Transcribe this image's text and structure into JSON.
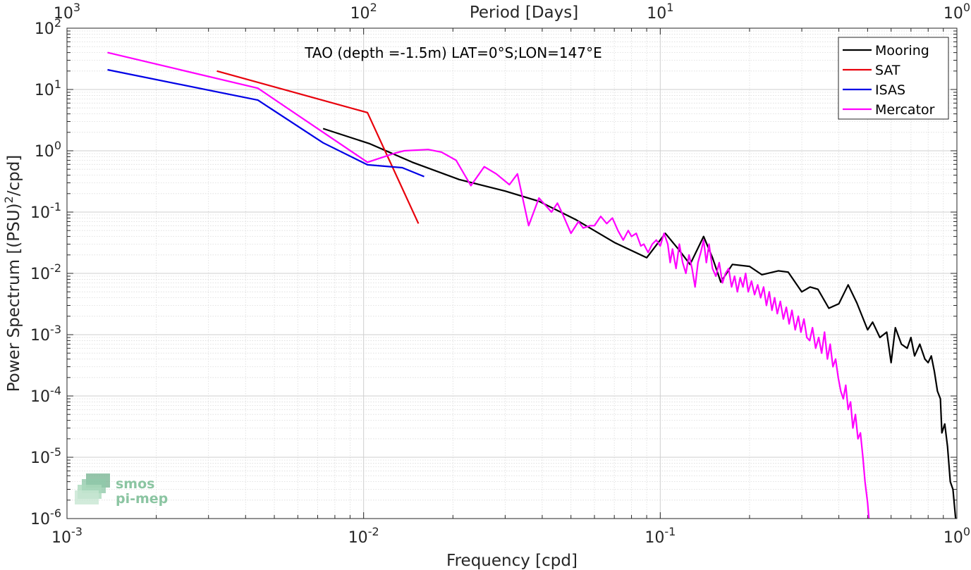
{
  "chart_data": {
    "type": "line",
    "title": "TAO (depth =-1.5m) LAT=0°S;LON=147°E",
    "xlabel": "Frequency [cpd]",
    "ylabel": "Power Spectrum [(PSU)",
    "ylabel_sup": "2",
    "ylabel_tail": "/cpd]",
    "top_xlabel": "Period [Days]",
    "x_scale": "log",
    "y_scale": "log",
    "xlim": [
      0.001,
      1
    ],
    "ylim": [
      1e-06,
      100
    ],
    "grid": true,
    "legend_position": "top-right",
    "x_ticks": [
      {
        "value": 0.001,
        "base": "10",
        "exp": "-3"
      },
      {
        "value": 0.01,
        "base": "10",
        "exp": "-2"
      },
      {
        "value": 0.1,
        "base": "10",
        "exp": "-1"
      },
      {
        "value": 1,
        "base": "10",
        "exp": "0"
      }
    ],
    "top_ticks": [
      {
        "value": 0.001,
        "base": "10",
        "exp": "3"
      },
      {
        "value": 0.01,
        "base": "10",
        "exp": "2"
      },
      {
        "value": 0.1,
        "base": "10",
        "exp": "1"
      },
      {
        "value": 1,
        "base": "10",
        "exp": "0"
      }
    ],
    "y_ticks": [
      {
        "value": 100,
        "base": "10",
        "exp": "2"
      },
      {
        "value": 10,
        "base": "10",
        "exp": "1"
      },
      {
        "value": 1,
        "base": "10",
        "exp": "0"
      },
      {
        "value": 0.1,
        "base": "10",
        "exp": "-1"
      },
      {
        "value": 0.01,
        "base": "10",
        "exp": "-2"
      },
      {
        "value": 0.001,
        "base": "10",
        "exp": "-3"
      },
      {
        "value": 0.0001,
        "base": "10",
        "exp": "-4"
      },
      {
        "value": 1e-05,
        "base": "10",
        "exp": "-5"
      },
      {
        "value": 1e-06,
        "base": "10",
        "exp": "-6"
      }
    ],
    "series": [
      {
        "name": "Mooring",
        "color": "#000000",
        "points": [
          [
            0.0073,
            2.3
          ],
          [
            0.0105,
            1.3
          ],
          [
            0.0146,
            0.65
          ],
          [
            0.021,
            0.34
          ],
          [
            0.03,
            0.22
          ],
          [
            0.039,
            0.15
          ],
          [
            0.052,
            0.075
          ],
          [
            0.07,
            0.032
          ],
          [
            0.09,
            0.018
          ],
          [
            0.104,
            0.045
          ],
          [
            0.115,
            0.025
          ],
          [
            0.126,
            0.014
          ],
          [
            0.14,
            0.04
          ],
          [
            0.15,
            0.018
          ],
          [
            0.16,
            0.0072
          ],
          [
            0.175,
            0.014
          ],
          [
            0.2,
            0.013
          ],
          [
            0.22,
            0.0095
          ],
          [
            0.25,
            0.011
          ],
          [
            0.27,
            0.0105
          ],
          [
            0.3,
            0.005
          ],
          [
            0.32,
            0.006
          ],
          [
            0.34,
            0.0055
          ],
          [
            0.37,
            0.0027
          ],
          [
            0.4,
            0.0032
          ],
          [
            0.43,
            0.0065
          ],
          [
            0.46,
            0.0033
          ],
          [
            0.5,
            0.0012
          ],
          [
            0.52,
            0.0016
          ],
          [
            0.55,
            0.0009
          ],
          [
            0.58,
            0.0011
          ],
          [
            0.6,
            0.00035
          ],
          [
            0.62,
            0.0013
          ],
          [
            0.65,
            0.0007
          ],
          [
            0.68,
            0.0006
          ],
          [
            0.7,
            0.0009
          ],
          [
            0.72,
            0.00045
          ],
          [
            0.75,
            0.0007
          ],
          [
            0.78,
            0.0004
          ],
          [
            0.8,
            0.00035
          ],
          [
            0.82,
            0.00045
          ],
          [
            0.84,
            0.00025
          ],
          [
            0.86,
            0.00012
          ],
          [
            0.88,
            9e-05
          ],
          [
            0.89,
            2.5e-05
          ],
          [
            0.91,
            3.5e-05
          ],
          [
            0.93,
            1.5e-05
          ],
          [
            0.95,
            4e-06
          ],
          [
            0.97,
            3e-06
          ],
          [
            0.99,
            1e-06
          ]
        ]
      },
      {
        "name": "SAT",
        "color": "#e8000b",
        "points": [
          [
            0.0032,
            20
          ],
          [
            0.0103,
            4.2
          ],
          [
            0.0153,
            0.065
          ]
        ]
      },
      {
        "name": "ISAS",
        "color": "#0000e6",
        "points": [
          [
            0.00137,
            21
          ],
          [
            0.0044,
            6.7
          ],
          [
            0.0073,
            1.35
          ],
          [
            0.0103,
            0.59
          ],
          [
            0.0135,
            0.53
          ],
          [
            0.016,
            0.38
          ]
        ]
      },
      {
        "name": "Mercator",
        "color": "#ff00ff",
        "points": [
          [
            0.00137,
            40
          ],
          [
            0.0044,
            10.5
          ],
          [
            0.0103,
            0.65
          ],
          [
            0.0128,
            0.92
          ],
          [
            0.0137,
            1.0
          ],
          [
            0.0165,
            1.05
          ],
          [
            0.0183,
            0.95
          ],
          [
            0.0205,
            0.7
          ],
          [
            0.023,
            0.27
          ],
          [
            0.0255,
            0.55
          ],
          [
            0.028,
            0.42
          ],
          [
            0.031,
            0.28
          ],
          [
            0.033,
            0.42
          ],
          [
            0.036,
            0.06
          ],
          [
            0.039,
            0.17
          ],
          [
            0.043,
            0.1
          ],
          [
            0.045,
            0.14
          ],
          [
            0.047,
            0.09
          ],
          [
            0.05,
            0.045
          ],
          [
            0.053,
            0.07
          ],
          [
            0.055,
            0.055
          ],
          [
            0.058,
            0.06
          ],
          [
            0.06,
            0.06
          ],
          [
            0.063,
            0.085
          ],
          [
            0.066,
            0.065
          ],
          [
            0.069,
            0.08
          ],
          [
            0.072,
            0.05
          ],
          [
            0.075,
            0.035
          ],
          [
            0.078,
            0.05
          ],
          [
            0.08,
            0.04
          ],
          [
            0.083,
            0.045
          ],
          [
            0.086,
            0.028
          ],
          [
            0.088,
            0.03
          ],
          [
            0.091,
            0.022
          ],
          [
            0.094,
            0.03
          ],
          [
            0.097,
            0.035
          ],
          [
            0.1,
            0.028
          ],
          [
            0.103,
            0.045
          ],
          [
            0.106,
            0.03
          ],
          [
            0.108,
            0.015
          ],
          [
            0.11,
            0.025
          ],
          [
            0.113,
            0.012
          ],
          [
            0.116,
            0.03
          ],
          [
            0.119,
            0.015
          ],
          [
            0.122,
            0.01
          ],
          [
            0.125,
            0.02
          ],
          [
            0.128,
            0.012
          ],
          [
            0.131,
            0.006
          ],
          [
            0.134,
            0.015
          ],
          [
            0.137,
            0.022
          ],
          [
            0.14,
            0.035
          ],
          [
            0.143,
            0.015
          ],
          [
            0.146,
            0.03
          ],
          [
            0.15,
            0.012
          ],
          [
            0.154,
            0.009
          ],
          [
            0.158,
            0.015
          ],
          [
            0.162,
            0.007
          ],
          [
            0.166,
            0.01
          ],
          [
            0.17,
            0.012
          ],
          [
            0.174,
            0.006
          ],
          [
            0.178,
            0.009
          ],
          [
            0.182,
            0.005
          ],
          [
            0.186,
            0.0085
          ],
          [
            0.19,
            0.006
          ],
          [
            0.194,
            0.01
          ],
          [
            0.198,
            0.005
          ],
          [
            0.203,
            0.0075
          ],
          [
            0.208,
            0.0045
          ],
          [
            0.213,
            0.0065
          ],
          [
            0.218,
            0.004
          ],
          [
            0.223,
            0.006
          ],
          [
            0.228,
            0.003
          ],
          [
            0.233,
            0.005
          ],
          [
            0.238,
            0.0025
          ],
          [
            0.243,
            0.004
          ],
          [
            0.248,
            0.0022
          ],
          [
            0.254,
            0.0035
          ],
          [
            0.26,
            0.0018
          ],
          [
            0.266,
            0.0028
          ],
          [
            0.272,
            0.0015
          ],
          [
            0.278,
            0.0025
          ],
          [
            0.285,
            0.0012
          ],
          [
            0.292,
            0.002
          ],
          [
            0.298,
            0.0011
          ],
          [
            0.305,
            0.0018
          ],
          [
            0.312,
            0.0009
          ],
          [
            0.319,
            0.0008
          ],
          [
            0.326,
            0.0013
          ],
          [
            0.334,
            0.0006
          ],
          [
            0.342,
            0.0009
          ],
          [
            0.35,
            0.0005
          ],
          [
            0.358,
            0.0011
          ],
          [
            0.366,
            0.0004
          ],
          [
            0.374,
            0.0007
          ],
          [
            0.382,
            0.0003
          ],
          [
            0.39,
            0.0004
          ],
          [
            0.398,
            0.0002
          ],
          [
            0.406,
            0.00012
          ],
          [
            0.414,
            9e-05
          ],
          [
            0.422,
            0.00015
          ],
          [
            0.43,
            6e-05
          ],
          [
            0.438,
            8e-05
          ],
          [
            0.446,
            3e-05
          ],
          [
            0.455,
            5e-05
          ],
          [
            0.464,
            2e-05
          ],
          [
            0.473,
            2.5e-05
          ],
          [
            0.482,
            1e-05
          ],
          [
            0.49,
            4e-06
          ],
          [
            0.5,
            1.8e-06
          ],
          [
            0.505,
            1e-06
          ]
        ]
      }
    ]
  },
  "logo": {
    "line1": "smos",
    "line2": "pi-mep"
  }
}
